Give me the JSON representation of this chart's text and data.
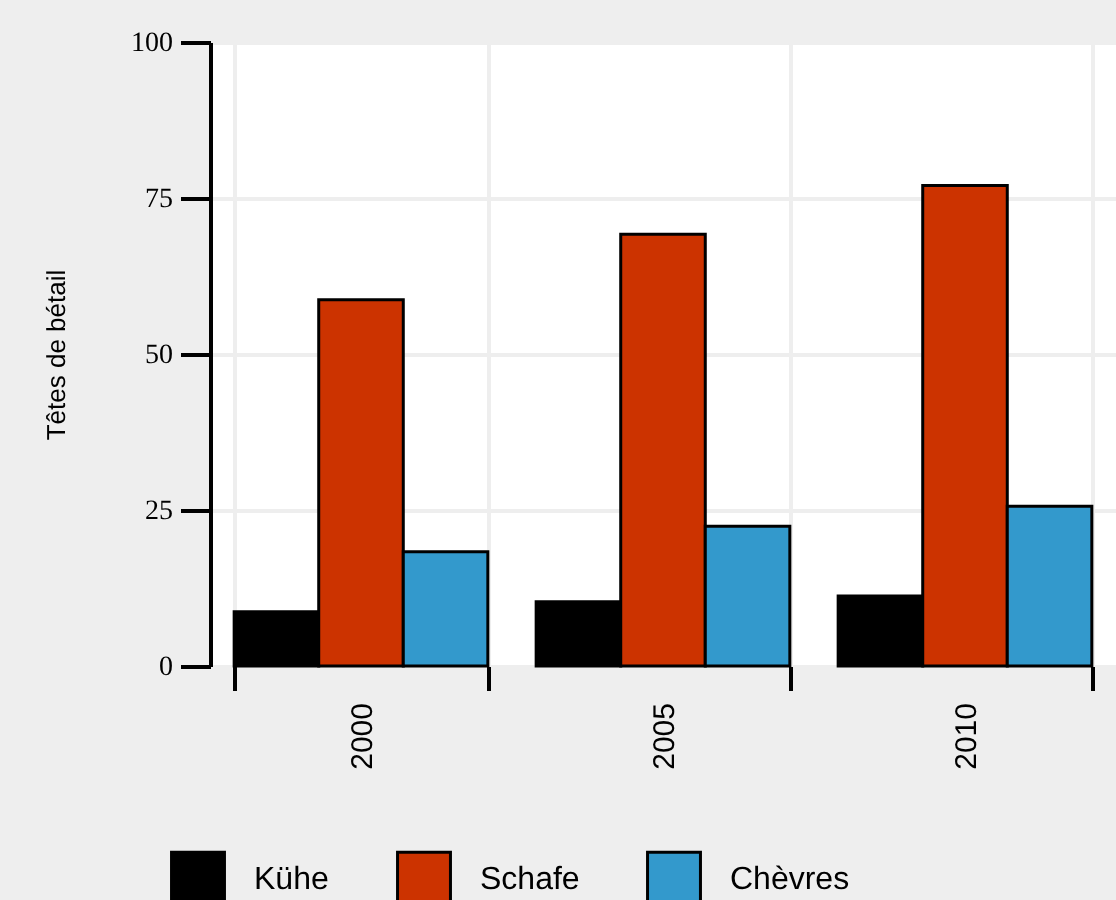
{
  "chart_data": {
    "type": "bar",
    "ylabel": "Têtes de bétail",
    "categories": [
      "2000",
      "2005",
      "2010"
    ],
    "series": [
      {
        "name": "Kühe",
        "color": "#000000",
        "values": [
          8.7,
          10.3,
          11.2
        ]
      },
      {
        "name": "Schafe",
        "color": "#cc3300",
        "values": [
          58.7,
          69.2,
          77
        ]
      },
      {
        "name": "Chèvres",
        "color": "#3399cc",
        "values": [
          18.3,
          22.4,
          25.6
        ]
      }
    ],
    "ylim": [
      0,
      100
    ],
    "yticks": [
      0,
      25,
      50,
      75,
      100
    ],
    "grid": true,
    "legend": "bottom"
  }
}
